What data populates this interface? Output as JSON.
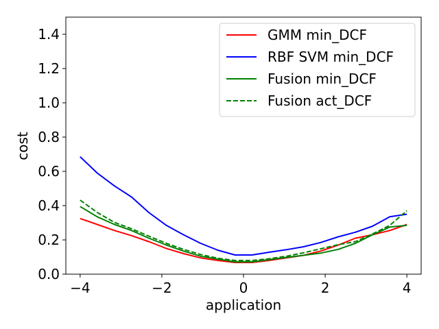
{
  "chart_data": {
    "type": "line",
    "title": "",
    "xlabel": "application",
    "ylabel": "cost",
    "xlim": [
      -4.35,
      4.35
    ],
    "ylim": [
      0,
      1.5
    ],
    "xticks": [
      -4,
      -2,
      0,
      2,
      4
    ],
    "xtick_labels": [
      "−4",
      "−2",
      "0",
      "2",
      "4"
    ],
    "yticks": [
      0.0,
      0.2,
      0.4,
      0.6,
      0.8,
      1.0,
      1.2,
      1.4
    ],
    "ytick_labels": [
      "0.0",
      "0.2",
      "0.4",
      "0.6",
      "0.8",
      "1.0",
      "1.2",
      "1.4"
    ],
    "grid": false,
    "legend_position": "top-right",
    "x": [
      -4.0,
      -3.58,
      -3.16,
      -2.74,
      -2.32,
      -1.89,
      -1.47,
      -1.05,
      -0.63,
      -0.21,
      0.21,
      0.63,
      1.05,
      1.47,
      1.89,
      2.32,
      2.74,
      3.16,
      3.58,
      4.0
    ],
    "series": [
      {
        "name": "GMM min_DCF",
        "color": "#ff0000",
        "dash": "solid",
        "values": [
          0.325,
          0.29,
          0.255,
          0.225,
          0.19,
          0.15,
          0.12,
          0.095,
          0.08,
          0.068,
          0.068,
          0.08,
          0.095,
          0.11,
          0.135,
          0.17,
          0.21,
          0.23,
          0.255,
          0.29
        ]
      },
      {
        "name": "RBF SVM min_DCF",
        "color": "#0000ff",
        "dash": "solid",
        "values": [
          0.685,
          0.59,
          0.515,
          0.45,
          0.36,
          0.285,
          0.23,
          0.18,
          0.14,
          0.112,
          0.112,
          0.128,
          0.143,
          0.16,
          0.185,
          0.218,
          0.245,
          0.28,
          0.335,
          0.35
        ]
      },
      {
        "name": "Fusion min_DCF",
        "color": "#008000",
        "dash": "solid",
        "values": [
          0.395,
          0.335,
          0.29,
          0.255,
          0.21,
          0.17,
          0.135,
          0.105,
          0.088,
          0.072,
          0.072,
          0.085,
          0.098,
          0.11,
          0.123,
          0.145,
          0.18,
          0.23,
          0.275,
          0.285
        ]
      },
      {
        "name": "Fusion act_DCF",
        "color": "#008000",
        "dash": "dashed",
        "values": [
          0.432,
          0.36,
          0.302,
          0.265,
          0.222,
          0.18,
          0.145,
          0.115,
          0.093,
          0.08,
          0.08,
          0.09,
          0.105,
          0.125,
          0.148,
          0.172,
          0.19,
          0.235,
          0.285,
          0.37
        ]
      }
    ]
  }
}
